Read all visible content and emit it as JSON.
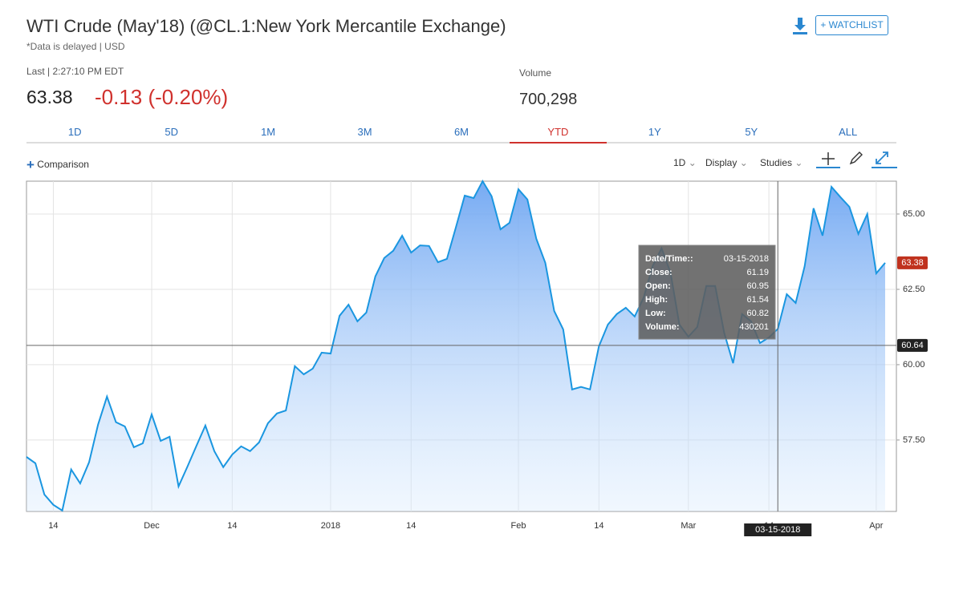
{
  "header": {
    "title": "WTI Crude (May'18) (@CL.1:New York Mercantile Exchange)",
    "subtitle": "*Data is delayed | USD",
    "last_label": "Last | 2:27:10 PM EDT",
    "last": "63.38",
    "change": "-0.13 (-0.20%)",
    "volume_label": "Volume",
    "volume": "700,298",
    "watchlist": "+ WATCHLIST"
  },
  "tabs": {
    "items": [
      "1D",
      "5D",
      "1M",
      "3M",
      "6M",
      "YTD",
      "1Y",
      "5Y",
      "ALL"
    ],
    "active": "YTD"
  },
  "toolbar": {
    "comparison": "Comparison",
    "interval": "1D",
    "display": "Display",
    "studies": "Studies"
  },
  "chart_data": {
    "type": "area",
    "categories": [
      null,
      null,
      null,
      "14",
      null,
      null,
      null,
      null,
      null,
      null,
      null,
      null,
      null,
      null,
      "Dec",
      null,
      null,
      null,
      null,
      null,
      null,
      null,
      null,
      "14",
      null,
      null,
      null,
      null,
      null,
      null,
      null,
      null,
      null,
      null,
      "2018",
      null,
      null,
      null,
      null,
      null,
      null,
      null,
      null,
      "14",
      null,
      null,
      null,
      null,
      null,
      null,
      null,
      null,
      null,
      null,
      null,
      "Feb",
      null,
      null,
      null,
      null,
      null,
      null,
      null,
      null,
      "14",
      null,
      null,
      null,
      null,
      null,
      null,
      null,
      null,
      null,
      "Mar",
      null,
      null,
      null,
      null,
      null,
      null,
      null,
      null,
      "14",
      "03-15-2018",
      null,
      null,
      null,
      null,
      null,
      null,
      null,
      null,
      null,
      null,
      "Apr",
      null
    ],
    "values": [
      56.94,
      56.73,
      55.69,
      55.35,
      55.16,
      56.52,
      56.06,
      56.76,
      58.01,
      58.94,
      58.09,
      57.95,
      57.26,
      57.39,
      58.35,
      57.47,
      57.61,
      55.96,
      56.62,
      57.31,
      57.98,
      57.13,
      56.6,
      57.02,
      57.29,
      57.13,
      57.42,
      58.06,
      58.38,
      58.48,
      59.95,
      59.68,
      59.87,
      60.4,
      60.37,
      61.62,
      61.99,
      61.44,
      61.73,
      62.93,
      63.54,
      63.78,
      64.28,
      63.72,
      63.96,
      63.94,
      63.4,
      63.51,
      64.55,
      65.61,
      65.53,
      66.09,
      65.59,
      64.49,
      64.71,
      65.82,
      65.48,
      64.18,
      63.38,
      61.78,
      61.17,
      59.18,
      59.26,
      59.18,
      60.61,
      61.33,
      61.68,
      61.89,
      61.6,
      62.23,
      63.27,
      63.86,
      63.06,
      61.33,
      60.93,
      61.25,
      62.61,
      62.61,
      61.06,
      60.05,
      61.68,
      61.44,
      60.72,
      60.9,
      61.19,
      62.34,
      62.05,
      63.27,
      65.19,
      64.28,
      65.9,
      65.56,
      65.24,
      64.34,
      65.0,
      63.03,
      63.38
    ],
    "color": "#1a96e0",
    "ylim": [
      55.13,
      66.09
    ],
    "yticks": [
      {
        "value": 57.5,
        "label": "57.50"
      },
      {
        "value": 60,
        "label": "60.00"
      },
      {
        "value": 62.5,
        "label": "62.50"
      },
      {
        "value": 65,
        "label": "65.00"
      }
    ],
    "grid": true,
    "last_value": 63.38,
    "crosshair_value": 60.64,
    "tooltip": {
      "rows": [
        [
          "Date/Time::",
          "03-15-2018"
        ],
        [
          "Close:",
          61.19
        ],
        [
          "Open:",
          60.95
        ],
        [
          "High:",
          61.54
        ],
        [
          "Low:",
          60.82
        ],
        [
          "Volume:",
          430201
        ]
      ]
    }
  }
}
